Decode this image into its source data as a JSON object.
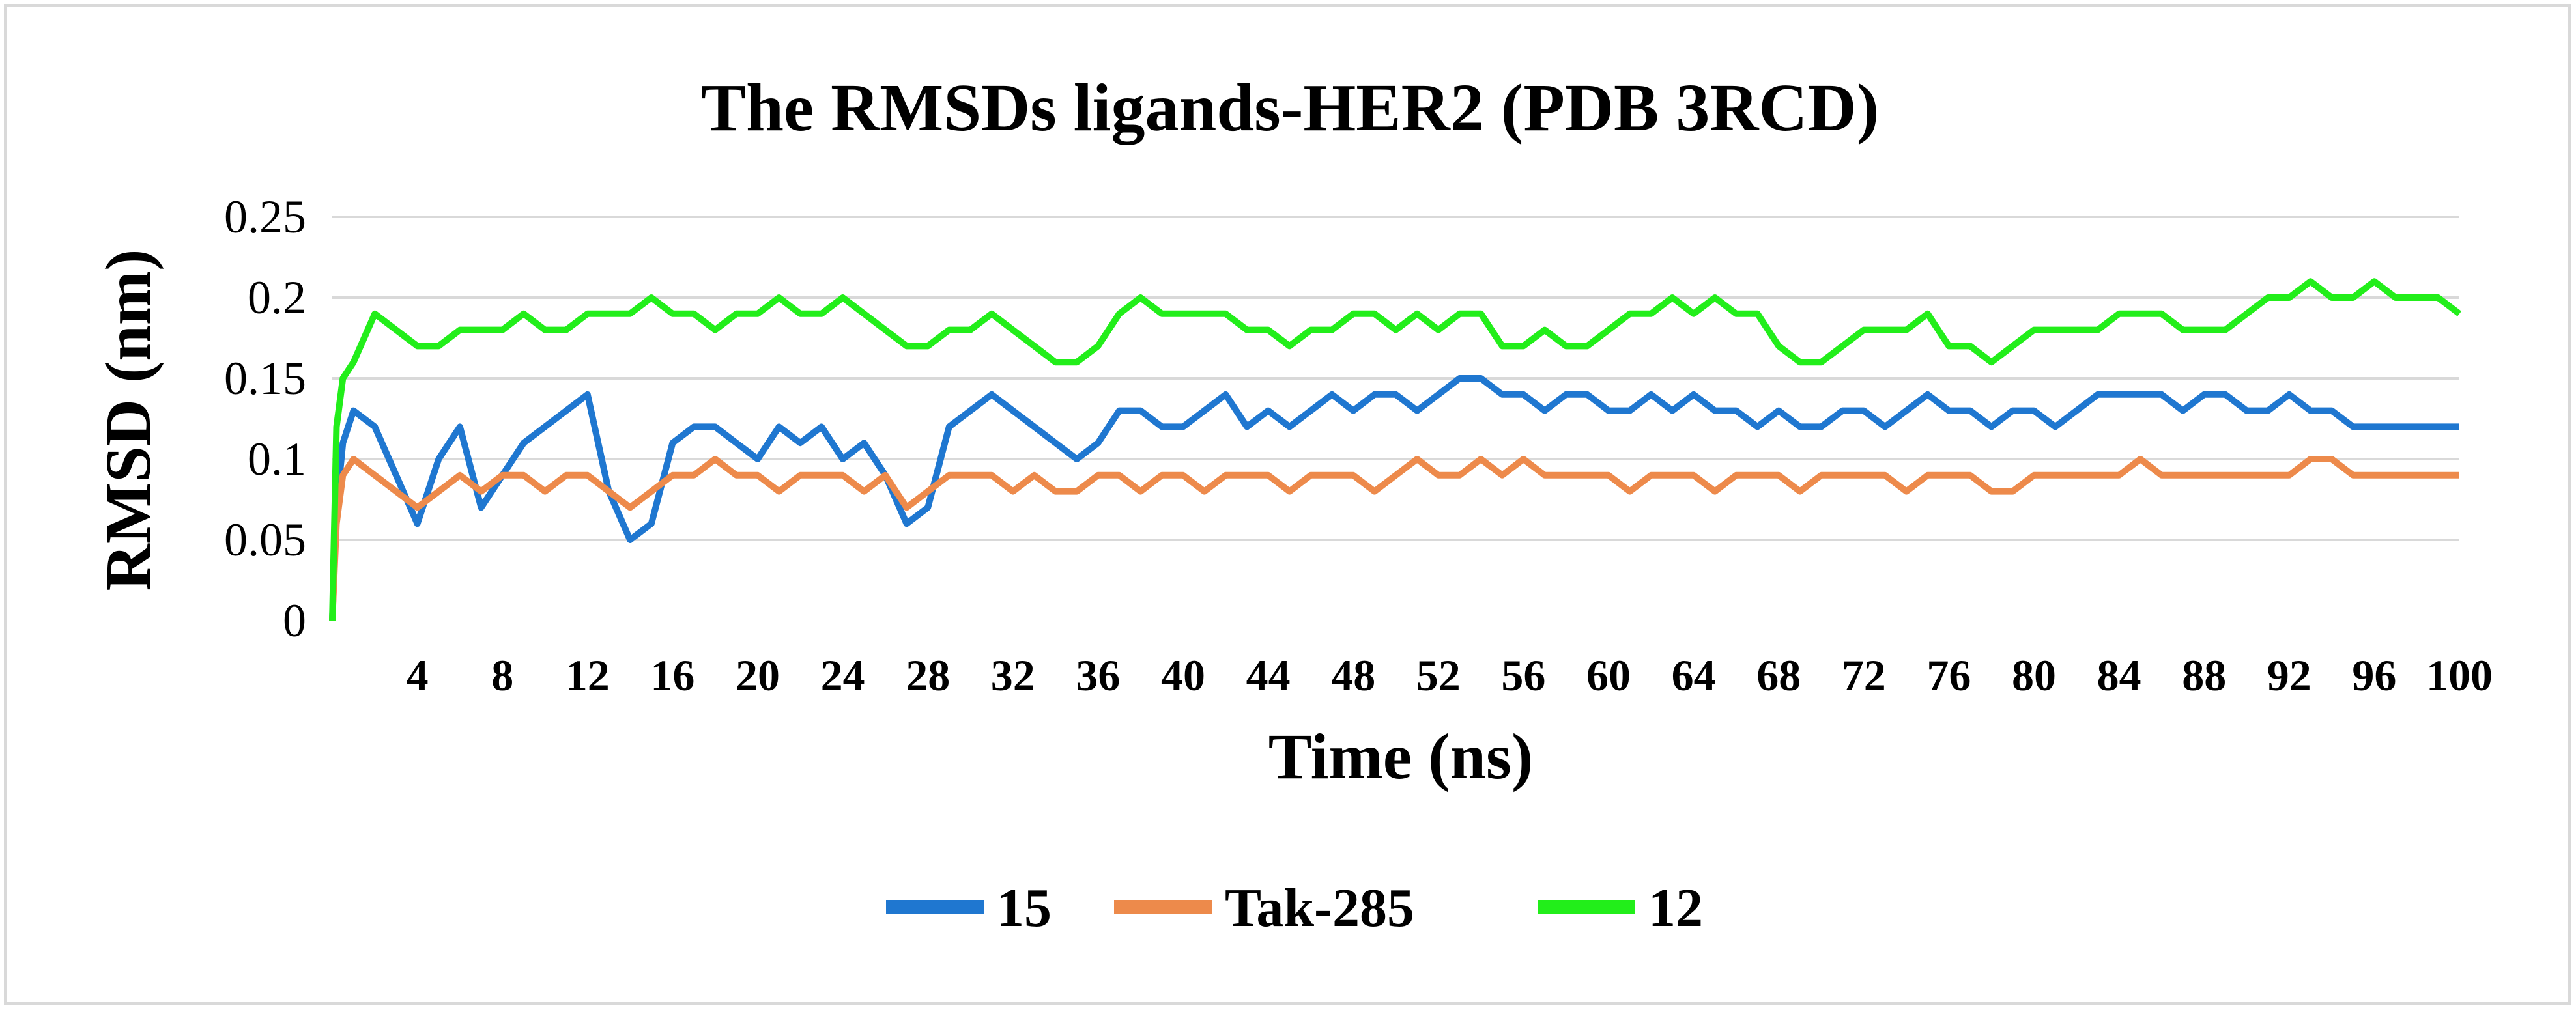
{
  "chart_data": {
    "type": "line",
    "title": "The RMSDs ligands-HER2 (PDB  3RCD)",
    "xlabel": "Time (ns)",
    "ylabel": "RMSD (nm)",
    "xlim": [
      0,
      100
    ],
    "ylim": [
      0,
      0.25
    ],
    "yticks": [
      "0",
      "0.05",
      "0.1",
      "0.15",
      "0.2",
      "0.25"
    ],
    "xticks": [
      "4",
      "8",
      "12",
      "16",
      "20",
      "24",
      "28",
      "32",
      "36",
      "40",
      "44",
      "48",
      "52",
      "56",
      "60",
      "64",
      "68",
      "72",
      "76",
      "80",
      "84",
      "88",
      "92",
      "96",
      "100"
    ],
    "grid": "horizontal",
    "legend_position": "bottom",
    "series": [
      {
        "name": "15",
        "color": "#1f77d0",
        "x": [
          0,
          0.2,
          0.5,
          1,
          2,
          3,
          4,
          5,
          6,
          7,
          8,
          9,
          10,
          11,
          12,
          13,
          14,
          15,
          16,
          17,
          18,
          19,
          20,
          21,
          22,
          23,
          24,
          25,
          26,
          27,
          28,
          29,
          30,
          31,
          32,
          33,
          34,
          35,
          36,
          37,
          38,
          39,
          40,
          41,
          42,
          43,
          44,
          45,
          46,
          47,
          48,
          49,
          50,
          51,
          52,
          53,
          54,
          55,
          56,
          57,
          58,
          59,
          60,
          61,
          62,
          63,
          64,
          65,
          66,
          67,
          68,
          69,
          70,
          71,
          72,
          73,
          74,
          75,
          76,
          77,
          78,
          79,
          80,
          81,
          82,
          83,
          84,
          85,
          86,
          87,
          88,
          89,
          90,
          91,
          92,
          93,
          94,
          95,
          96,
          97,
          98,
          99,
          100
        ],
        "values": [
          0,
          0.07,
          0.11,
          0.13,
          0.12,
          0.09,
          0.06,
          0.1,
          0.12,
          0.07,
          0.09,
          0.11,
          0.12,
          0.13,
          0.14,
          0.08,
          0.05,
          0.06,
          0.11,
          0.12,
          0.12,
          0.11,
          0.1,
          0.12,
          0.11,
          0.12,
          0.1,
          0.11,
          0.09,
          0.06,
          0.07,
          0.12,
          0.13,
          0.14,
          0.13,
          0.12,
          0.11,
          0.1,
          0.11,
          0.13,
          0.13,
          0.12,
          0.12,
          0.13,
          0.14,
          0.12,
          0.13,
          0.12,
          0.13,
          0.14,
          0.13,
          0.14,
          0.14,
          0.13,
          0.14,
          0.15,
          0.15,
          0.14,
          0.14,
          0.13,
          0.14,
          0.14,
          0.13,
          0.13,
          0.14,
          0.13,
          0.14,
          0.13,
          0.13,
          0.12,
          0.13,
          0.12,
          0.12,
          0.13,
          0.13,
          0.12,
          0.13,
          0.14,
          0.13,
          0.13,
          0.12,
          0.13,
          0.13,
          0.12,
          0.13,
          0.14,
          0.14,
          0.14,
          0.14,
          0.13,
          0.14,
          0.14,
          0.13,
          0.13,
          0.14,
          0.13,
          0.13,
          0.12,
          0.12,
          0.12,
          0.12,
          0.12,
          0.12
        ]
      },
      {
        "name": "Tak-285",
        "color": "#ed8a4b",
        "x": [
          0,
          0.2,
          0.5,
          1,
          2,
          3,
          4,
          5,
          6,
          7,
          8,
          9,
          10,
          11,
          12,
          13,
          14,
          15,
          16,
          17,
          18,
          19,
          20,
          21,
          22,
          23,
          24,
          25,
          26,
          27,
          28,
          29,
          30,
          31,
          32,
          33,
          34,
          35,
          36,
          37,
          38,
          39,
          40,
          41,
          42,
          43,
          44,
          45,
          46,
          47,
          48,
          49,
          50,
          51,
          52,
          53,
          54,
          55,
          56,
          57,
          58,
          59,
          60,
          61,
          62,
          63,
          64,
          65,
          66,
          67,
          68,
          69,
          70,
          71,
          72,
          73,
          74,
          75,
          76,
          77,
          78,
          79,
          80,
          81,
          82,
          83,
          84,
          85,
          86,
          87,
          88,
          89,
          90,
          91,
          92,
          93,
          94,
          95,
          96,
          97,
          98,
          99,
          100
        ],
        "values": [
          0,
          0.06,
          0.09,
          0.1,
          0.09,
          0.08,
          0.07,
          0.08,
          0.09,
          0.08,
          0.09,
          0.09,
          0.08,
          0.09,
          0.09,
          0.08,
          0.07,
          0.08,
          0.09,
          0.09,
          0.1,
          0.09,
          0.09,
          0.08,
          0.09,
          0.09,
          0.09,
          0.08,
          0.09,
          0.07,
          0.08,
          0.09,
          0.09,
          0.09,
          0.08,
          0.09,
          0.08,
          0.08,
          0.09,
          0.09,
          0.08,
          0.09,
          0.09,
          0.08,
          0.09,
          0.09,
          0.09,
          0.08,
          0.09,
          0.09,
          0.09,
          0.08,
          0.09,
          0.1,
          0.09,
          0.09,
          0.1,
          0.09,
          0.1,
          0.09,
          0.09,
          0.09,
          0.09,
          0.08,
          0.09,
          0.09,
          0.09,
          0.08,
          0.09,
          0.09,
          0.09,
          0.08,
          0.09,
          0.09,
          0.09,
          0.09,
          0.08,
          0.09,
          0.09,
          0.09,
          0.08,
          0.08,
          0.09,
          0.09,
          0.09,
          0.09,
          0.09,
          0.1,
          0.09,
          0.09,
          0.09,
          0.09,
          0.09,
          0.09,
          0.09,
          0.1,
          0.1,
          0.09,
          0.09,
          0.09,
          0.09,
          0.09,
          0.09
        ]
      },
      {
        "name": "12",
        "color": "#22ee1a",
        "x": [
          0,
          0.2,
          0.5,
          1,
          2,
          3,
          4,
          5,
          6,
          7,
          8,
          9,
          10,
          11,
          12,
          13,
          14,
          15,
          16,
          17,
          18,
          19,
          20,
          21,
          22,
          23,
          24,
          25,
          26,
          27,
          28,
          29,
          30,
          31,
          32,
          33,
          34,
          35,
          36,
          37,
          38,
          39,
          40,
          41,
          42,
          43,
          44,
          45,
          46,
          47,
          48,
          49,
          50,
          51,
          52,
          53,
          54,
          55,
          56,
          57,
          58,
          59,
          60,
          61,
          62,
          63,
          64,
          65,
          66,
          67,
          68,
          69,
          70,
          71,
          72,
          73,
          74,
          75,
          76,
          77,
          78,
          79,
          80,
          81,
          82,
          83,
          84,
          85,
          86,
          87,
          88,
          89,
          90,
          91,
          92,
          93,
          94,
          95,
          96,
          97,
          98,
          99,
          100
        ],
        "values": [
          0,
          0.12,
          0.15,
          0.16,
          0.19,
          0.18,
          0.17,
          0.17,
          0.18,
          0.18,
          0.18,
          0.19,
          0.18,
          0.18,
          0.19,
          0.19,
          0.19,
          0.2,
          0.19,
          0.19,
          0.18,
          0.19,
          0.19,
          0.2,
          0.19,
          0.19,
          0.2,
          0.19,
          0.18,
          0.17,
          0.17,
          0.18,
          0.18,
          0.19,
          0.18,
          0.17,
          0.16,
          0.16,
          0.17,
          0.19,
          0.2,
          0.19,
          0.19,
          0.19,
          0.19,
          0.18,
          0.18,
          0.17,
          0.18,
          0.18,
          0.19,
          0.19,
          0.18,
          0.19,
          0.18,
          0.19,
          0.19,
          0.17,
          0.17,
          0.18,
          0.17,
          0.17,
          0.18,
          0.19,
          0.19,
          0.2,
          0.19,
          0.2,
          0.19,
          0.19,
          0.17,
          0.16,
          0.16,
          0.17,
          0.18,
          0.18,
          0.18,
          0.19,
          0.17,
          0.17,
          0.16,
          0.17,
          0.18,
          0.18,
          0.18,
          0.18,
          0.19,
          0.19,
          0.19,
          0.18,
          0.18,
          0.18,
          0.19,
          0.2,
          0.2,
          0.21,
          0.2,
          0.2,
          0.21,
          0.2,
          0.2,
          0.2,
          0.19
        ]
      }
    ]
  }
}
